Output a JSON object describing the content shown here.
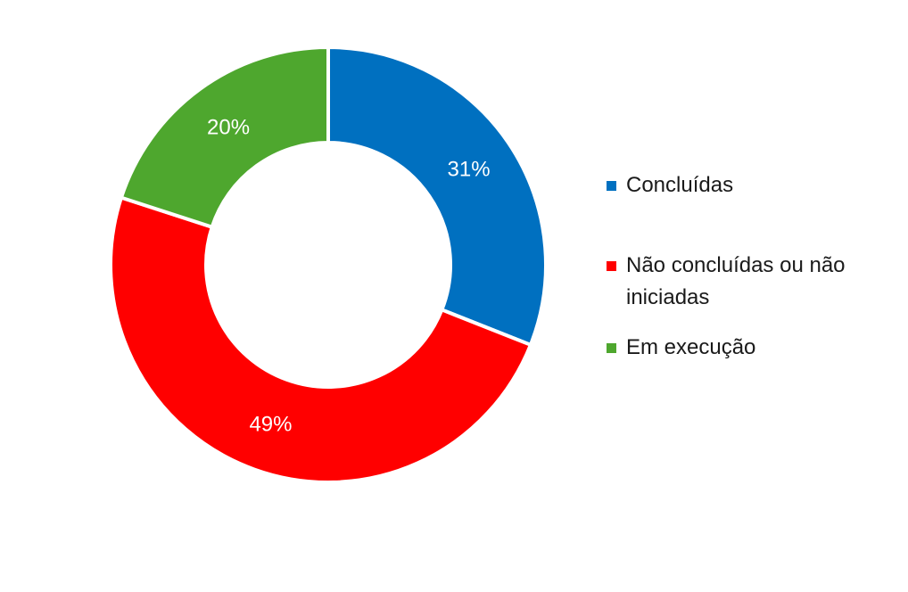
{
  "chart_data": {
    "type": "pie",
    "style": "donut",
    "categories": [
      "Concluídas",
      "Não concluídas ou não iniciadas",
      "Em execução"
    ],
    "values": [
      31,
      49,
      20
    ],
    "labels": [
      "31%",
      "49%",
      "20%"
    ],
    "colors": [
      "#0070C0",
      "#FF0000",
      "#4EA72E"
    ],
    "legend_position": "right"
  }
}
